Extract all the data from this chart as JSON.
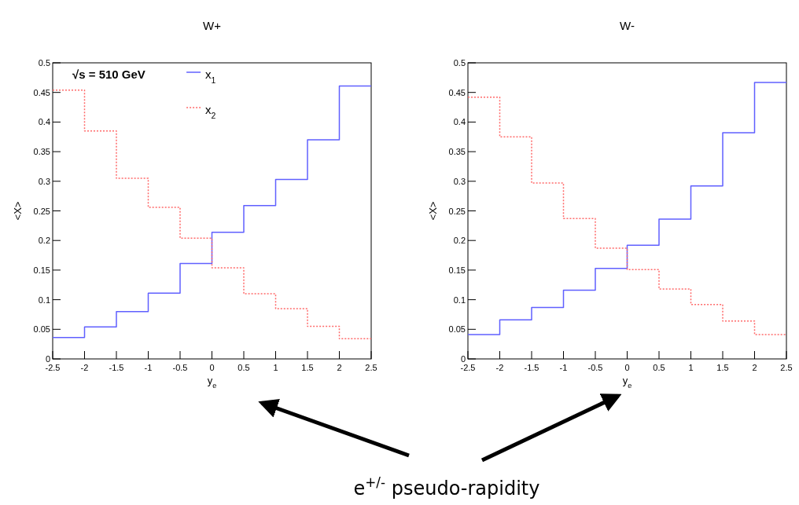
{
  "chart_data": [
    {
      "type": "histogram",
      "title": "W+",
      "xlabel": "y$_{e}$",
      "ylabel": "<X>",
      "bins": [
        -2.5,
        -2,
        -1.5,
        -1,
        -0.5,
        0,
        0.5,
        1,
        1.5,
        2,
        2.5
      ],
      "xlim": [
        -2.5,
        2.5
      ],
      "xticks": [
        -2.5,
        -2,
        -1.5,
        -1,
        -0.5,
        0,
        0.5,
        1,
        1.5,
        2,
        2.5
      ],
      "ylim": [
        0,
        0.5
      ],
      "yticks": [
        0,
        0.05,
        0.1,
        0.15,
        0.2,
        0.25,
        0.3,
        0.35,
        0.4,
        0.45,
        0.5
      ],
      "legend": "top",
      "annotations": [
        "√s = 510 GeV",
        "e$^{+/-}$ pseudo-rapidity"
      ],
      "series": [
        {
          "name": "x$_{1}$",
          "color": "#6060ff",
          "line_style": "solid",
          "values": [
            0.036,
            0.054,
            0.08,
            0.111,
            0.161,
            0.214,
            0.259,
            0.303,
            0.37,
            0.461
          ]
        },
        {
          "name": "x$_{2}$",
          "color": "#ff6a6a",
          "line_style": "dotted",
          "values": [
            0.454,
            0.385,
            0.305,
            0.256,
            0.204,
            0.154,
            0.11,
            0.085,
            0.055,
            0.034
          ]
        }
      ]
    },
    {
      "type": "histogram",
      "title": "W-",
      "xlabel": "y$_{e}$",
      "ylabel": "<X>",
      "bins": [
        -2.5,
        -2,
        -1.5,
        -1,
        -0.5,
        0,
        0.5,
        1,
        1.5,
        2,
        2.5
      ],
      "xlim": [
        -2.5,
        2.5
      ],
      "xticks": [
        -2.5,
        -2,
        -1.5,
        -1,
        -0.5,
        0,
        0.5,
        1,
        1.5,
        2,
        2.5
      ],
      "ylim": [
        0,
        0.5
      ],
      "yticks": [
        0,
        0.05,
        0.1,
        0.15,
        0.2,
        0.25,
        0.3,
        0.35,
        0.4,
        0.45,
        0.5
      ],
      "series": [
        {
          "color": "#6060ff",
          "line_style": "solid",
          "values": [
            0.041,
            0.066,
            0.087,
            0.116,
            0.153,
            0.192,
            0.236,
            0.292,
            0.382,
            0.467
          ]
        },
        {
          "color": "#ff6a6a",
          "line_style": "dotted",
          "values": [
            0.442,
            0.375,
            0.297,
            0.237,
            0.187,
            0.151,
            0.118,
            0.092,
            0.064,
            0.041
          ]
        }
      ]
    }
  ]
}
